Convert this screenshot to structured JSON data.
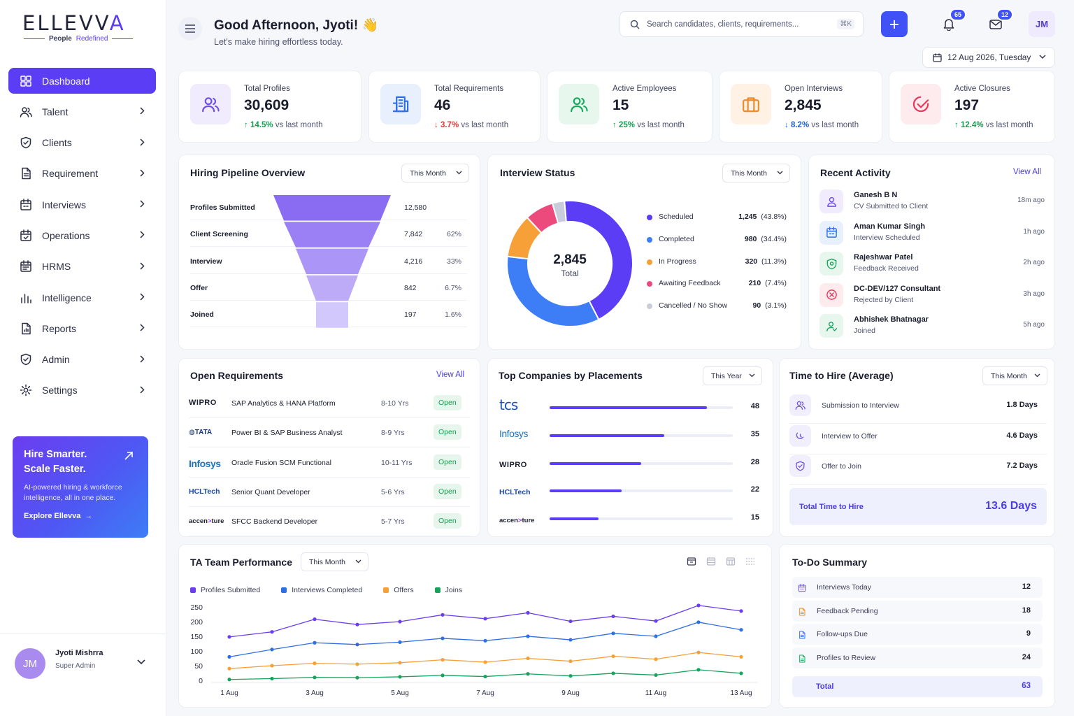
{
  "brand": {
    "name_main": "ELLEVV",
    "name_accent": "A",
    "tagline_1": "People",
    "tagline_2": "Redefined"
  },
  "nav": [
    {
      "label": "Dashboard",
      "icon": "dashboard-icon",
      "active": true
    },
    {
      "label": "Talent",
      "icon": "users-icon"
    },
    {
      "label": "Clients",
      "icon": "shield-icon"
    },
    {
      "label": "Requirement",
      "icon": "document-icon"
    },
    {
      "label": "Interviews",
      "icon": "calendar-icon"
    },
    {
      "label": "Operations",
      "icon": "calendar-check-icon"
    },
    {
      "label": "HRMS",
      "icon": "calendar-grid-icon"
    },
    {
      "label": "Intelligence",
      "icon": "bar-chart-icon"
    },
    {
      "label": "Reports",
      "icon": "report-icon"
    },
    {
      "label": "Admin",
      "icon": "shield-check-icon"
    },
    {
      "label": "Settings",
      "icon": "gear-icon"
    }
  ],
  "promo": {
    "line1": "Hire Smarter.",
    "line2": "Scale Faster.",
    "desc": "AI-powered hiring & workforce intelligence, all in one place.",
    "cta": "Explore Ellevva"
  },
  "user": {
    "initials": "JM",
    "name": "Jyoti Mishrra",
    "role": "Super Admin"
  },
  "header": {
    "greeting": "Good Afternoon, Jyoti! 👋",
    "subtitle": "Let's make hiring effortless today.",
    "search_placeholder": "Search candidates, clients, requirements...",
    "search_shortcut": "⌘K",
    "notif_count": "65",
    "mail_count": "12",
    "avatar": "JM",
    "date": "12 Aug 2026, Tuesday"
  },
  "stats": [
    {
      "label": "Total Profiles",
      "value": "30,609",
      "change": "14.5%",
      "dir": "up",
      "suffix": "vs last month",
      "color": "#6b4ee6",
      "bg": "#f0ecfd"
    },
    {
      "label": "Total Requirements",
      "value": "46",
      "change": "3.7%",
      "dir": "down",
      "suffix": "vs last month",
      "color": "#2f6fe4",
      "bg": "#e9f0fd"
    },
    {
      "label": "Active Employees",
      "value": "15",
      "change": "25%",
      "dir": "up",
      "suffix": "vs last month",
      "color": "#1aa860",
      "bg": "#e7f7ee"
    },
    {
      "label": "Open Interviews",
      "value": "2,845",
      "change": "8.2%",
      "dir": "blue",
      "suffix": "vs last month",
      "color": "#f08a24",
      "bg": "#fff1e4"
    },
    {
      "label": "Active Closures",
      "value": "197",
      "change": "12.4%",
      "dir": "up",
      "suffix": "vs last month",
      "color": "#e8385a",
      "bg": "#fdebee"
    }
  ],
  "pipeline": {
    "title": "Hiring Pipeline Overview",
    "filter": "This Month",
    "rows": [
      {
        "name": "Profiles Submitted",
        "value": "12,580",
        "pct": ""
      },
      {
        "name": "Client Screening",
        "value": "7,842",
        "pct": "62%"
      },
      {
        "name": "Interview",
        "value": "4,216",
        "pct": "33%"
      },
      {
        "name": "Offer",
        "value": "842",
        "pct": "6.7%"
      },
      {
        "name": "Joined",
        "value": "197",
        "pct": "1.6%"
      }
    ]
  },
  "interview": {
    "title": "Interview Status",
    "filter": "This Month",
    "total": "2,845",
    "total_label": "Total",
    "items": [
      {
        "label": "Scheduled",
        "value": "1,245",
        "pct": "(43.8%)",
        "share": 43.8,
        "color": "#5b3df5"
      },
      {
        "label": "Completed",
        "value": "980",
        "pct": "(34.4%)",
        "share": 34.4,
        "color": "#3d7df6"
      },
      {
        "label": "In Progress",
        "value": "320",
        "pct": "(11.3%)",
        "share": 11.3,
        "color": "#f6a037"
      },
      {
        "label": "Awaiting Feedback",
        "value": "210",
        "pct": "(7.4%)",
        "share": 7.4,
        "color": "#ec4a7c"
      },
      {
        "label": "Cancelled / No Show",
        "value": "90",
        "pct": "(3.1%)",
        "share": 3.1,
        "color": "#c9ccda"
      }
    ]
  },
  "activity": {
    "title": "Recent Activity",
    "view_all": "View All",
    "items": [
      {
        "name": "Ganesh B N",
        "desc": "CV Submitted to Client",
        "time": "18m ago",
        "icon": "user-icon",
        "color": "#6b4ee6",
        "bg": "#f0ecfd"
      },
      {
        "name": "Aman Kumar Singh",
        "desc": "Interview Scheduled",
        "time": "1h ago",
        "icon": "calendar-icon",
        "color": "#2f6fe4",
        "bg": "#e9f0fd"
      },
      {
        "name": "Rajeshwar Patel",
        "desc": "Feedback Received",
        "time": "2h ago",
        "icon": "feedback-icon",
        "color": "#1aa860",
        "bg": "#e7f7ee"
      },
      {
        "name": "DC-DEV/127 Consultant",
        "desc": "Rejected by Client",
        "time": "3h ago",
        "icon": "reject-icon",
        "color": "#e8385a",
        "bg": "#fdebee"
      },
      {
        "name": "Abhishek Bhatnagar",
        "desc": "Joined",
        "time": "5h ago",
        "icon": "user-check-icon",
        "color": "#1aa860",
        "bg": "#e7f7ee"
      }
    ]
  },
  "requirements": {
    "title": "Open Requirements",
    "view_all": "View All",
    "items": [
      {
        "company": "WIPRO",
        "title": "SAP Analytics & HANA Platform",
        "exp": "8-10 Yrs",
        "status": "Open"
      },
      {
        "company": "TATA",
        "title": "Power BI & SAP Business Analyst",
        "exp": "8-9 Yrs",
        "status": "Open"
      },
      {
        "company": "Infosys",
        "title": "Oracle Fusion SCM Functional",
        "exp": "10-11 Yrs",
        "status": "Open"
      },
      {
        "company": "HCLTech",
        "title": "Senior Quant Developer",
        "exp": "5-6 Yrs",
        "status": "Open"
      },
      {
        "company": "accenture",
        "title": "SFCC Backend Developer",
        "exp": "5-7 Yrs",
        "status": "Open"
      }
    ]
  },
  "companies": {
    "title": "Top Companies by Placements",
    "filter": "This Year",
    "items": [
      {
        "company": "tcs",
        "value": 48
      },
      {
        "company": "Infosys",
        "value": 35
      },
      {
        "company": "WIPRO",
        "value": 28
      },
      {
        "company": "HCLTech",
        "value": 22
      },
      {
        "company": "accenture",
        "value": 15
      }
    ]
  },
  "tth": {
    "title": "Time to Hire (Average)",
    "filter": "This Month",
    "items": [
      {
        "label": "Submission to Interview",
        "value": "1.8 Days",
        "icon": "users-icon"
      },
      {
        "label": "Interview to Offer",
        "value": "4.6 Days",
        "icon": "handshake-icon"
      },
      {
        "label": "Offer to Join",
        "value": "7.2 Days",
        "icon": "shield-check-icon"
      }
    ],
    "total_label": "Total Time to Hire",
    "total_value": "13.6 Days"
  },
  "chart_data": {
    "type": "line",
    "title": "TA Team Performance",
    "filter": "This Month",
    "x": [
      "1 Aug",
      "2 Aug",
      "3 Aug",
      "4 Aug",
      "5 Aug",
      "6 Aug",
      "7 Aug",
      "8 Aug",
      "9 Aug",
      "10 Aug",
      "11 Aug",
      "12 Aug",
      "13 Aug"
    ],
    "xticks": [
      "1 Aug",
      "3 Aug",
      "5 Aug",
      "7 Aug",
      "9 Aug",
      "11 Aug",
      "13 Aug"
    ],
    "yticks": [
      0,
      50,
      100,
      150,
      200,
      250
    ],
    "ylim": [
      0,
      250
    ],
    "grid": false,
    "legend": "top-left",
    "series": [
      {
        "name": "Profiles Submitted",
        "color": "#6b3df0",
        "values": [
          148,
          165,
          208,
          190,
          200,
          223,
          210,
          230,
          201,
          218,
          202,
          255,
          236
        ]
      },
      {
        "name": "Interviews Completed",
        "color": "#2f6fe4",
        "values": [
          80,
          105,
          128,
          122,
          130,
          143,
          135,
          150,
          138,
          160,
          150,
          198,
          172
        ]
      },
      {
        "name": "Offers",
        "color": "#f6a037",
        "values": [
          40,
          50,
          58,
          55,
          60,
          70,
          62,
          75,
          65,
          82,
          72,
          95,
          80
        ]
      },
      {
        "name": "Joins",
        "color": "#17a35c",
        "values": [
          3,
          6,
          10,
          9,
          12,
          17,
          13,
          22,
          15,
          24,
          18,
          36,
          24
        ]
      }
    ]
  },
  "todo": {
    "title": "To-Do Summary",
    "items": [
      {
        "label": "Interviews Today",
        "value": "12",
        "color": "#6b4ee6"
      },
      {
        "label": "Feedback Pending",
        "value": "18",
        "color": "#f08a24"
      },
      {
        "label": "Follow-ups Due",
        "value": "9",
        "color": "#2f6fe4"
      },
      {
        "label": "Profiles to Review",
        "value": "24",
        "color": "#1aa860"
      }
    ],
    "total_label": "Total",
    "total_value": "63"
  }
}
